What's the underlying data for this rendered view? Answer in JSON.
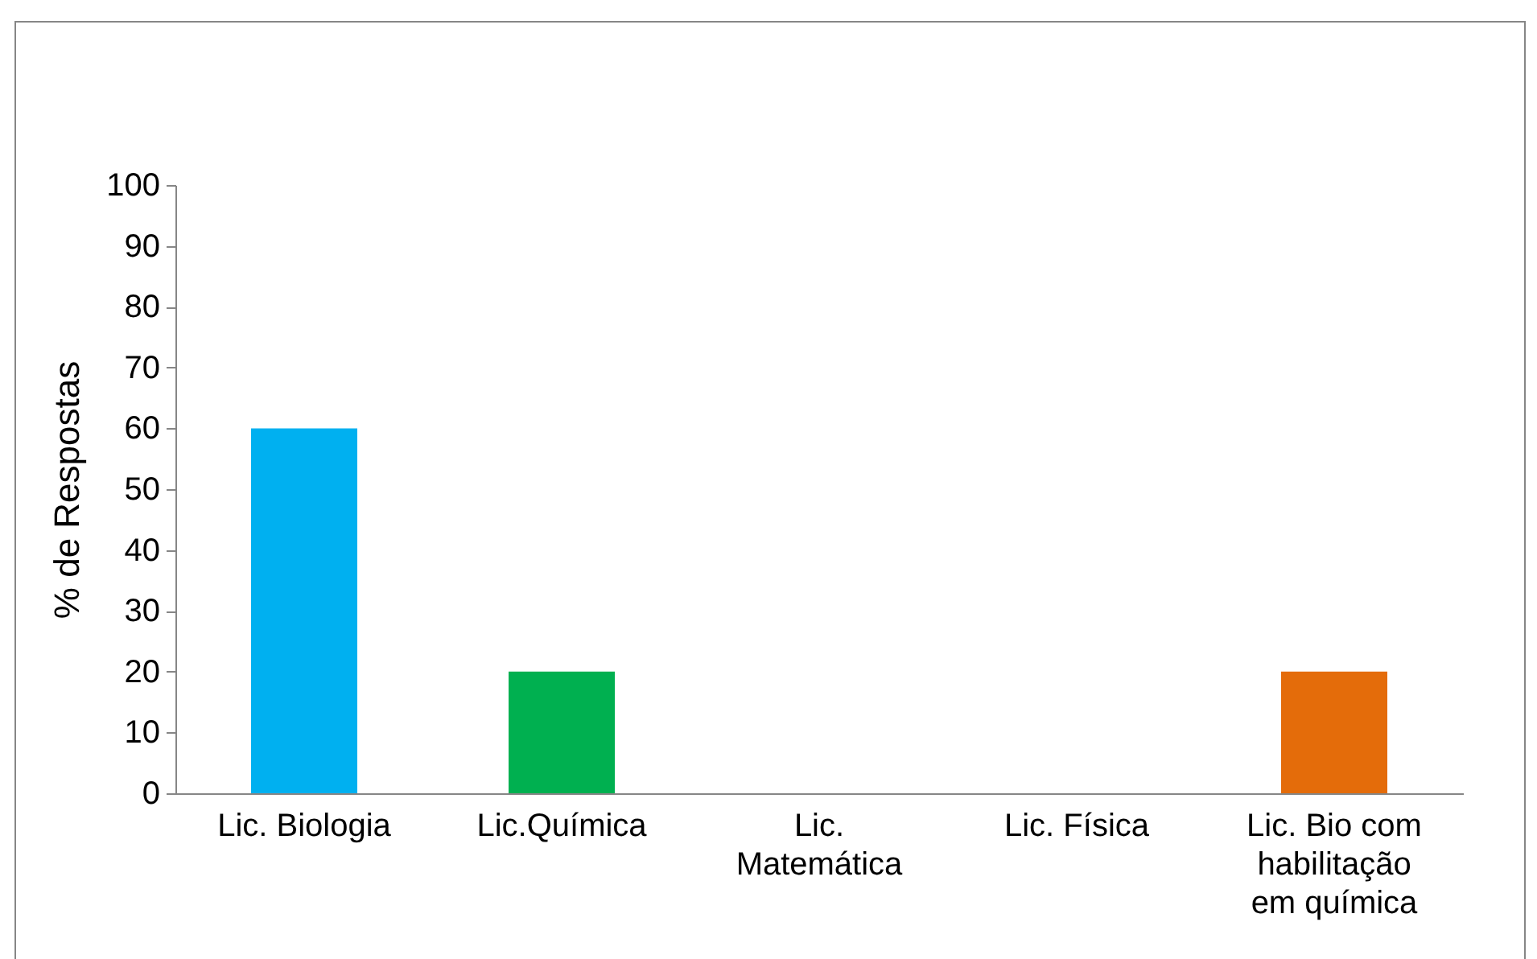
{
  "chart_data": {
    "type": "bar",
    "ylabel": "% de Respostas",
    "categories": [
      "Lic. Biologia",
      "Lic.Química",
      "Lic. Matemática",
      "Lic. Física",
      "Lic. Bio com habilitação em química"
    ],
    "values": [
      60,
      20,
      0,
      0,
      20
    ],
    "colors": [
      "#00b0f0",
      "#00b050",
      "#00b0f0",
      "#00b050",
      "#e46c0a"
    ],
    "ylim": [
      0,
      100
    ],
    "yticks": [
      0,
      10,
      20,
      30,
      40,
      50,
      60,
      70,
      80,
      90,
      100
    ],
    "grid": false
  }
}
